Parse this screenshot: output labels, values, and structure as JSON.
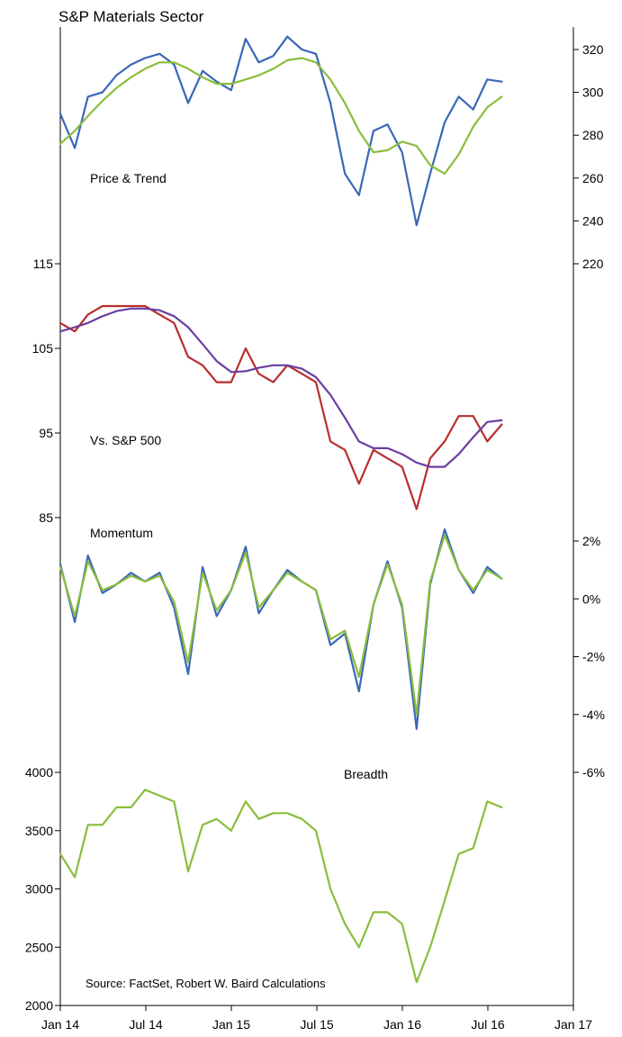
{
  "title": "S&P Materials Sector",
  "source": "Source: FactSet, Robert W. Baird Calculations",
  "x_axis": {
    "labels": [
      "Jan 14",
      "Jul 14",
      "Jan 15",
      "Jul 15",
      "Jan 16",
      "Jul 16",
      "Jan 17"
    ],
    "range": [
      "2014-01-01",
      "2017-01-01"
    ]
  },
  "colors": {
    "blue": "#3a67b8",
    "green": "#8bbd3c",
    "red": "#b82e2e",
    "purple": "#6b3fa0"
  },
  "chart_data": [
    {
      "type": "line",
      "annotation": "Price & Trend",
      "y_axis_side": "right",
      "ylim": [
        220,
        330
      ],
      "yticks": [
        220,
        240,
        260,
        280,
        300,
        320
      ],
      "series": [
        {
          "color": "blue",
          "x": [
            "2014-01-01",
            "2014-02-01",
            "2014-03-01",
            "2014-04-01",
            "2014-05-01",
            "2014-06-01",
            "2014-07-01",
            "2014-08-01",
            "2014-09-01",
            "2014-10-01",
            "2014-11-01",
            "2014-12-01",
            "2015-01-01",
            "2015-02-01",
            "2015-03-01",
            "2015-04-01",
            "2015-05-01",
            "2015-06-01",
            "2015-07-01",
            "2015-08-01",
            "2015-09-01",
            "2015-10-01",
            "2015-11-01",
            "2015-12-01",
            "2016-01-01",
            "2016-02-01",
            "2016-03-01",
            "2016-04-01",
            "2016-05-01",
            "2016-06-01",
            "2016-07-01",
            "2016-08-01"
          ],
          "y": [
            290,
            274,
            298,
            300,
            308,
            313,
            316,
            318,
            313,
            295,
            310,
            305,
            301,
            325,
            314,
            317,
            326,
            320,
            318,
            295,
            262,
            252,
            282,
            285,
            272,
            238,
            262,
            286,
            298,
            292,
            306,
            305
          ]
        },
        {
          "color": "green",
          "x": [
            "2014-01-01",
            "2014-02-01",
            "2014-03-01",
            "2014-04-01",
            "2014-05-01",
            "2014-06-01",
            "2014-07-01",
            "2014-08-01",
            "2014-09-01",
            "2014-10-01",
            "2014-11-01",
            "2014-12-01",
            "2015-01-01",
            "2015-02-01",
            "2015-03-01",
            "2015-04-01",
            "2015-05-01",
            "2015-06-01",
            "2015-07-01",
            "2015-08-01",
            "2015-09-01",
            "2015-10-01",
            "2015-11-01",
            "2015-12-01",
            "2016-01-01",
            "2016-02-01",
            "2016-03-01",
            "2016-04-01",
            "2016-05-01",
            "2016-06-01",
            "2016-07-01",
            "2016-08-01"
          ],
          "y": [
            276,
            282,
            289,
            296,
            302,
            307,
            311,
            314,
            314,
            311,
            307,
            304,
            304,
            306,
            308,
            311,
            315,
            316,
            314,
            306,
            295,
            282,
            272,
            273,
            277,
            275,
            266,
            262,
            271,
            284,
            293,
            298
          ]
        }
      ]
    },
    {
      "type": "line",
      "annotation": "Vs. S&P 500",
      "y_axis_side": "left",
      "ylim": [
        85,
        115
      ],
      "yticks": [
        85,
        95,
        105,
        115
      ],
      "series": [
        {
          "color": "red",
          "x": [
            "2014-01-01",
            "2014-02-01",
            "2014-03-01",
            "2014-04-01",
            "2014-05-01",
            "2014-06-01",
            "2014-07-01",
            "2014-08-01",
            "2014-09-01",
            "2014-10-01",
            "2014-11-01",
            "2014-12-01",
            "2015-01-01",
            "2015-02-01",
            "2015-03-01",
            "2015-04-01",
            "2015-05-01",
            "2015-06-01",
            "2015-07-01",
            "2015-08-01",
            "2015-09-01",
            "2015-10-01",
            "2015-11-01",
            "2015-12-01",
            "2016-01-01",
            "2016-02-01",
            "2016-03-01",
            "2016-04-01",
            "2016-05-01",
            "2016-06-01",
            "2016-07-01",
            "2016-08-01"
          ],
          "y": [
            108,
            107,
            109,
            110,
            110,
            110,
            110,
            109,
            108,
            104,
            103,
            101,
            101,
            105,
            102,
            101,
            103,
            102,
            101,
            94,
            93,
            89,
            93,
            92,
            91,
            86,
            92,
            94,
            97,
            97,
            94,
            96
          ]
        },
        {
          "color": "purple",
          "x": [
            "2014-01-01",
            "2014-02-01",
            "2014-03-01",
            "2014-04-01",
            "2014-05-01",
            "2014-06-01",
            "2014-07-01",
            "2014-08-01",
            "2014-09-01",
            "2014-10-01",
            "2014-11-01",
            "2014-12-01",
            "2015-01-01",
            "2015-02-01",
            "2015-03-01",
            "2015-04-01",
            "2015-05-01",
            "2015-06-01",
            "2015-07-01",
            "2015-08-01",
            "2015-09-01",
            "2015-10-01",
            "2015-11-01",
            "2015-12-01",
            "2016-01-01",
            "2016-02-01",
            "2016-03-01",
            "2016-04-01",
            "2016-05-01",
            "2016-06-01",
            "2016-07-01",
            "2016-08-01"
          ],
          "y": [
            107,
            107.5,
            108,
            108.8,
            109.4,
            109.7,
            109.7,
            109.5,
            108.8,
            107.5,
            105.5,
            103.5,
            102.2,
            102.3,
            102.7,
            103,
            103,
            102.6,
            101.6,
            99.5,
            96.8,
            94,
            93.2,
            93.2,
            92.5,
            91.5,
            91,
            91,
            92.5,
            94.5,
            96.3,
            96.5
          ]
        }
      ]
    },
    {
      "type": "line",
      "annotation": "Momentum",
      "y_axis_side": "right",
      "ylim": [
        -6,
        2
      ],
      "yticks": [
        "-6%",
        "-4%",
        "-2%",
        "0%",
        "2%"
      ],
      "series": [
        {
          "color": "blue",
          "x": [
            "2014-01-01",
            "2014-02-01",
            "2014-03-01",
            "2014-04-01",
            "2014-05-01",
            "2014-06-01",
            "2014-07-01",
            "2014-08-01",
            "2014-09-01",
            "2014-10-01",
            "2014-11-01",
            "2014-12-01",
            "2015-01-01",
            "2015-02-01",
            "2015-03-01",
            "2015-04-01",
            "2015-05-01",
            "2015-06-01",
            "2015-07-01",
            "2015-08-01",
            "2015-09-01",
            "2015-10-01",
            "2015-11-01",
            "2015-12-01",
            "2016-01-01",
            "2016-02-01",
            "2016-03-01",
            "2016-04-01",
            "2016-05-01",
            "2016-06-01",
            "2016-07-01",
            "2016-08-01"
          ],
          "y": [
            1.2,
            -0.8,
            1.5,
            0.2,
            0.5,
            0.9,
            0.6,
            0.9,
            -0.3,
            -2.6,
            1.1,
            -0.6,
            0.3,
            1.8,
            -0.5,
            0.3,
            1,
            0.6,
            0.3,
            -1.6,
            -1.2,
            -3.2,
            -0.2,
            1.3,
            -0.3,
            -4.5,
            0.5,
            2.4,
            1,
            0.2,
            1.1,
            0.7
          ]
        },
        {
          "color": "green",
          "x": [
            "2014-01-01",
            "2014-02-01",
            "2014-03-01",
            "2014-04-01",
            "2014-05-01",
            "2014-06-01",
            "2014-07-01",
            "2014-08-01",
            "2014-09-01",
            "2014-10-01",
            "2014-11-01",
            "2014-12-01",
            "2015-01-01",
            "2015-02-01",
            "2015-03-01",
            "2015-04-01",
            "2015-05-01",
            "2015-06-01",
            "2015-07-01",
            "2015-08-01",
            "2015-09-01",
            "2015-10-01",
            "2015-11-01",
            "2015-12-01",
            "2016-01-01",
            "2016-02-01",
            "2016-03-01",
            "2016-04-01",
            "2016-05-01",
            "2016-06-01",
            "2016-07-01",
            "2016-08-01"
          ],
          "y": [
            1.1,
            -0.6,
            1.3,
            0.3,
            0.5,
            0.8,
            0.6,
            0.8,
            -0.1,
            -2.2,
            0.9,
            -0.4,
            0.3,
            1.6,
            -0.3,
            0.3,
            0.9,
            0.6,
            0.3,
            -1.4,
            -1.1,
            -2.7,
            -0.2,
            1.2,
            -0.2,
            -4,
            0.6,
            2.2,
            1,
            0.3,
            1,
            0.7
          ]
        }
      ]
    },
    {
      "type": "line",
      "annotation": "Breadth",
      "y_axis_side": "left",
      "ylim": [
        2000,
        4000
      ],
      "yticks": [
        2000,
        2500,
        3000,
        3500,
        4000
      ],
      "series": [
        {
          "color": "green",
          "x": [
            "2014-01-01",
            "2014-02-01",
            "2014-03-01",
            "2014-04-01",
            "2014-05-01",
            "2014-06-01",
            "2014-07-01",
            "2014-08-01",
            "2014-09-01",
            "2014-10-01",
            "2014-11-01",
            "2014-12-01",
            "2015-01-01",
            "2015-02-01",
            "2015-03-01",
            "2015-04-01",
            "2015-05-01",
            "2015-06-01",
            "2015-07-01",
            "2015-08-01",
            "2015-09-01",
            "2015-10-01",
            "2015-11-01",
            "2015-12-01",
            "2016-01-01",
            "2016-02-01",
            "2016-03-01",
            "2016-04-01",
            "2016-05-01",
            "2016-06-01",
            "2016-07-01",
            "2016-08-01"
          ],
          "y": [
            3300,
            3100,
            3550,
            3550,
            3700,
            3700,
            3850,
            3800,
            3750,
            3150,
            3550,
            3600,
            3500,
            3750,
            3600,
            3650,
            3650,
            3600,
            3500,
            3000,
            2700,
            2500,
            2800,
            2800,
            2700,
            2200,
            2500,
            2900,
            3300,
            3350,
            3750,
            3700
          ]
        }
      ]
    }
  ]
}
